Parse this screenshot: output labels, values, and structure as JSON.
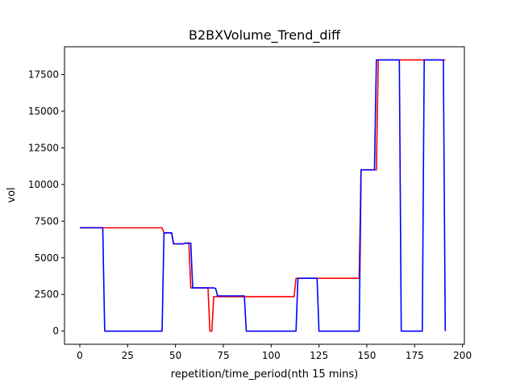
{
  "chart_data": {
    "type": "line",
    "title": "B2BXVolume_Trend_diff",
    "xlabel": "repetition/time_period(nth 15 mins)",
    "ylabel": "vol",
    "xlim": [
      -8,
      201
    ],
    "ylim": [
      -900,
      19400
    ],
    "xticks": [
      0,
      25,
      50,
      75,
      100,
      125,
      150,
      175,
      200
    ],
    "xtick_labels": [
      "0",
      "25",
      "50",
      "75",
      "100",
      "125",
      "150",
      "175",
      "200"
    ],
    "yticks": [
      0,
      2500,
      5000,
      7500,
      10000,
      12500,
      15000,
      17500
    ],
    "ytick_labels": [
      "0",
      "2500",
      "5000",
      "7500",
      "10000",
      "12500",
      "15000",
      "17500"
    ],
    "grid": false,
    "legend": "none",
    "series": [
      {
        "color": "#ff0000",
        "x": [
          0,
          43,
          44,
          48,
          49,
          54,
          55,
          57,
          58,
          67,
          68,
          69,
          70,
          71,
          112,
          113,
          146,
          147,
          155,
          156,
          191
        ],
        "y": [
          7050,
          7050,
          6700,
          6700,
          5950,
          5950,
          6000,
          6000,
          2950,
          2950,
          0,
          0,
          2350,
          2350,
          2350,
          3600,
          3600,
          11000,
          11000,
          18500,
          18500
        ]
      },
      {
        "color": "#0000ff",
        "x": [
          0,
          12,
          13,
          43,
          44,
          48,
          49,
          54,
          55,
          58,
          59,
          70,
          71,
          72,
          86,
          87,
          113,
          114,
          124,
          125,
          146,
          147,
          154,
          155,
          167,
          168,
          179,
          180,
          190,
          191
        ],
        "y": [
          7050,
          7050,
          0,
          0,
          6700,
          6700,
          5950,
          5950,
          6000,
          6000,
          2950,
          2950,
          2900,
          2400,
          2400,
          0,
          0,
          3600,
          3600,
          0,
          0,
          11000,
          11000,
          18500,
          18500,
          0,
          0,
          18500,
          18500,
          0
        ]
      }
    ]
  }
}
